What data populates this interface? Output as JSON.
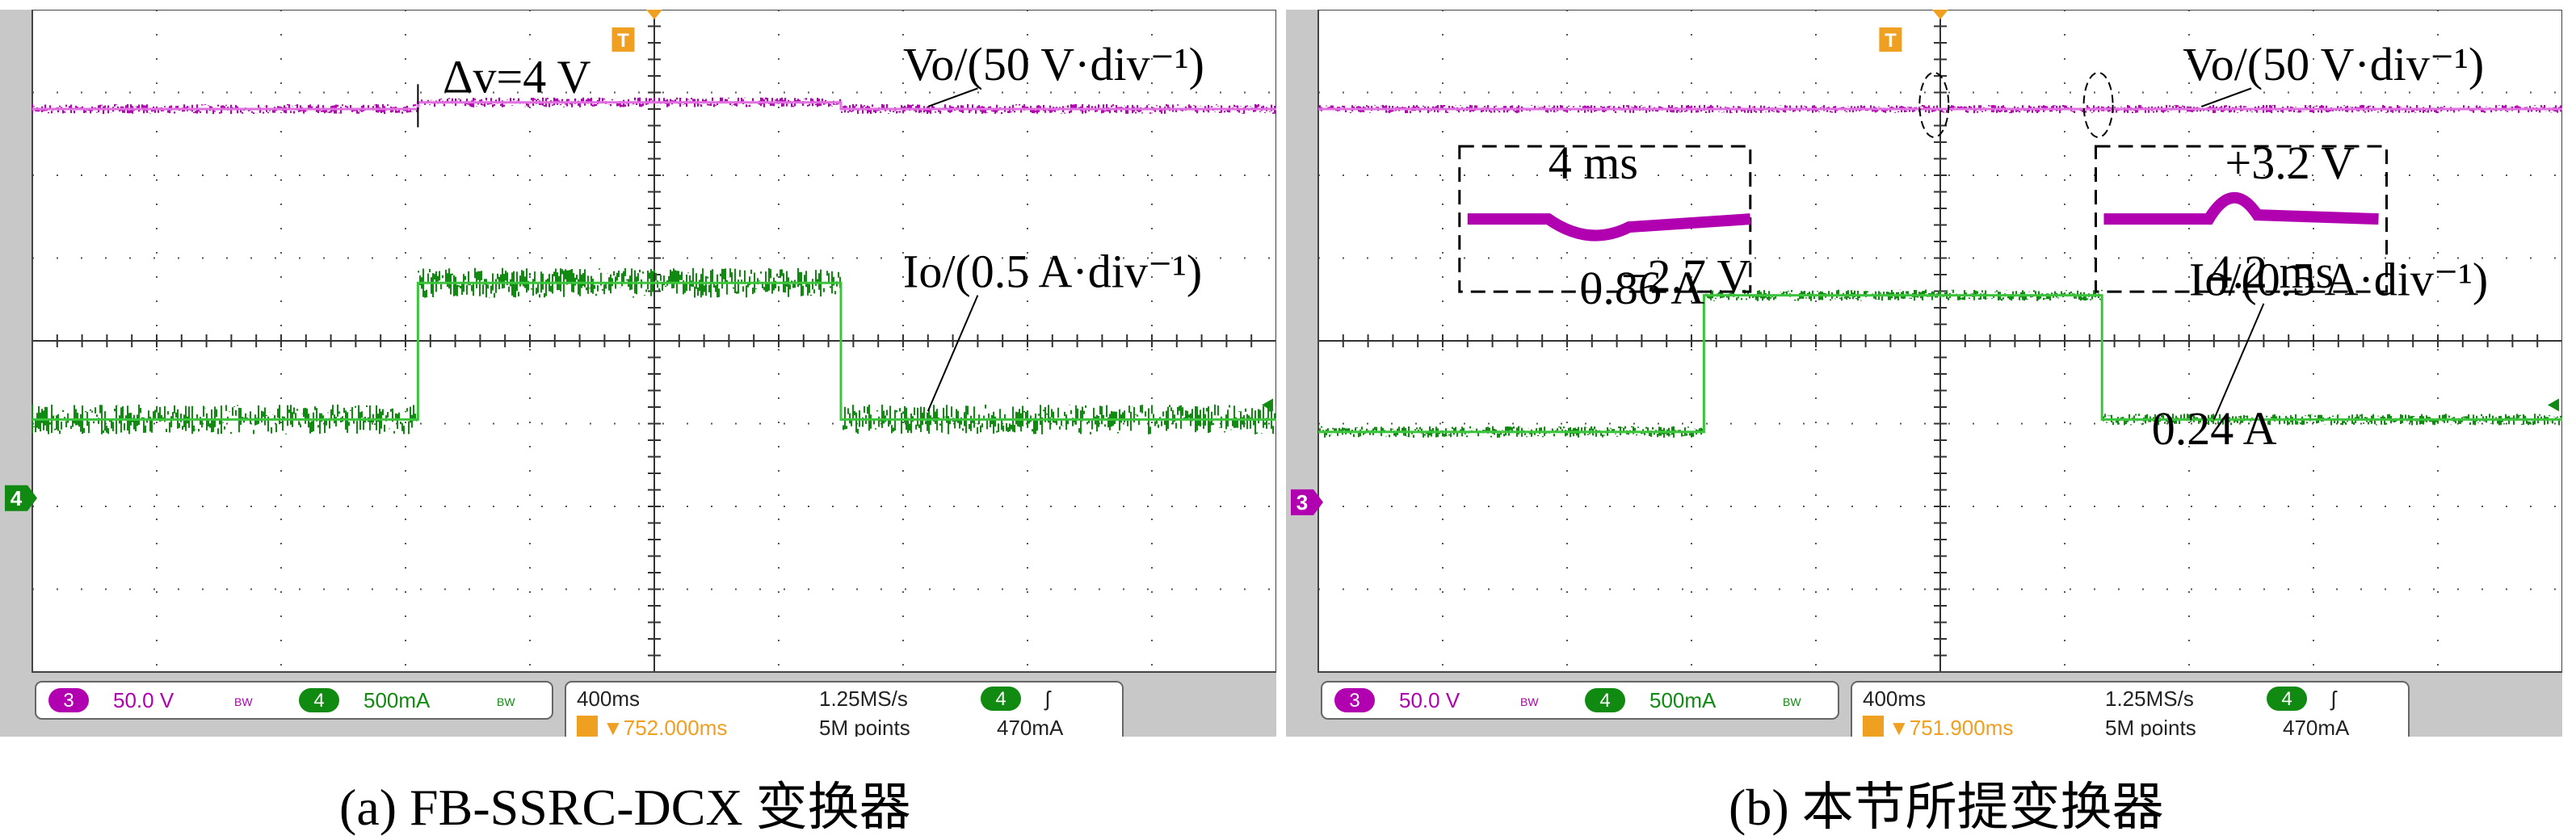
{
  "colors": {
    "ch3": "#b000b0",
    "ch3_light": "#e070e0",
    "ch4": "#108a10",
    "ch4_light": "#3cc43c",
    "trigger": "#f0a020",
    "screen": "#ffffff",
    "bezel": "#c8c8c8",
    "grid": "#555555"
  },
  "chart_data": [
    {
      "type": "line",
      "panel": "a",
      "caption": "(a) FB-SSRC-DCX 变换器",
      "x_divisions": 10,
      "y_divisions": 8,
      "series": [
        {
          "name": "Vo",
          "channel": 3,
          "scale": "50 V/div",
          "x": [
            0,
            3.1,
            3.1,
            6.5,
            6.5,
            10
          ],
          "y": [
            1.2,
            1.2,
            1.12,
            1.12,
            1.2,
            1.2
          ],
          "noise": 0.06
        },
        {
          "name": "Io",
          "channel": 4,
          "scale": "0.5 A/div",
          "x": [
            0,
            3.1,
            3.1,
            6.5,
            6.5,
            10
          ],
          "y": [
            4.95,
            4.95,
            3.3,
            3.3,
            4.95,
            4.95
          ],
          "noise": 0.18
        }
      ],
      "labels": {
        "vo": "Vo/(50 V·div⁻¹)",
        "io": "Io/(0.5 A·div⁻¹)",
        "dv": "Δv=4 V"
      },
      "markers": {
        "ch": "4",
        "trigger": "T"
      },
      "status": {
        "ch3_badge": "3",
        "ch3_scale": "50.0 V",
        "bw1": "BW",
        "ch4_badge": "4",
        "ch4_scale": "500mA",
        "bw2": "BW",
        "timebase": "400ms",
        "sample_rate": "1.25MS/s",
        "trig_badge": "4",
        "trig_slope": "ʃ",
        "trig_pos": "▼752.000ms",
        "points": "5M points",
        "trig_level": "470mA"
      }
    },
    {
      "type": "line",
      "panel": "b",
      "caption": "(b) 本节所提变换器",
      "x_divisions": 10,
      "y_divisions": 8,
      "series": [
        {
          "name": "Vo",
          "channel": 3,
          "scale": "50 V/div",
          "x": [
            0,
            10
          ],
          "y": [
            1.2,
            1.2
          ],
          "noise": 0.05
        },
        {
          "name": "Io",
          "channel": 4,
          "scale": "0.5 A/div",
          "x": [
            0,
            3.1,
            3.1,
            6.3,
            6.3,
            10
          ],
          "y": [
            5.1,
            5.1,
            3.45,
            3.45,
            4.95,
            4.95
          ],
          "noise": 0.07
        }
      ],
      "labels": {
        "vo": "Vo/(50 V·div⁻¹)",
        "io": "Io/(0.5 A·div⁻¹)",
        "inset1_time": "4 ms",
        "inset1_drop": "−2.7 V",
        "inset2_rise": "+3.2 V",
        "inset2_time": "4.2 ms",
        "io_high": "0.86 A",
        "io_low": "0.24 A"
      },
      "markers": {
        "ch": "3",
        "trigger": "T"
      },
      "status": {
        "ch3_badge": "3",
        "ch3_scale": "50.0 V",
        "bw1": "BW",
        "ch4_badge": "4",
        "ch4_scale": "500mA",
        "bw2": "BW",
        "timebase": "400ms",
        "sample_rate": "1.25MS/s",
        "trig_badge": "4",
        "trig_slope": "ʃ",
        "trig_pos": "▼751.900ms",
        "points": "5M points",
        "trig_level": "470mA"
      }
    }
  ]
}
